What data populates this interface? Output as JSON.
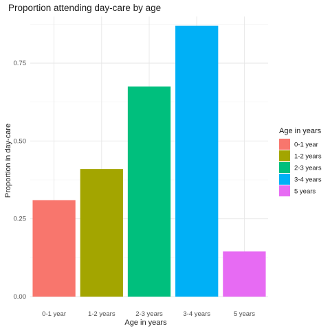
{
  "chart_data": {
    "type": "bar",
    "title": "Proportion attending day-care by age",
    "xlabel": "Age in years",
    "ylabel": "Proportion in day-care",
    "categories": [
      "0-1 year",
      "1-2 years",
      "2-3 years",
      "3-4 years",
      "5 years"
    ],
    "values": [
      0.31,
      0.41,
      0.675,
      0.87,
      0.145
    ],
    "colors": [
      "#F8766D",
      "#A3A500",
      "#00BF7D",
      "#00B0F6",
      "#E76BF3"
    ],
    "ylim": [
      0,
      0.9
    ],
    "yticks": [
      0.0,
      0.25,
      0.5,
      0.75
    ],
    "ytick_labels": [
      "0.00",
      "0.25",
      "0.50",
      "0.75"
    ],
    "grid": true,
    "legend": {
      "title": "Age in years",
      "position": "right",
      "entries": [
        "0-1 year",
        "1-2 years",
        "2-3 years",
        "3-4 years",
        "5 years"
      ]
    }
  }
}
